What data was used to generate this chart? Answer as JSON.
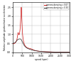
{
  "title": "",
  "xlabel": "speed (rpm)",
  "ylabel": "Relative amplitude gearbox/motor acceleration",
  "xlim": [
    0,
    3000
  ],
  "ylim": [
    0,
    2.8
  ],
  "xticks": [
    0,
    500,
    1000,
    1500,
    2000,
    2500,
    3000
  ],
  "yticks": [
    0.0,
    0.5,
    1.0,
    1.5,
    2.0,
    2.5
  ],
  "legend_labels": [
    "gamma damping = 0.07",
    "gamma damping = 0.30"
  ],
  "line_colors": [
    "#cc1111",
    "#222222"
  ],
  "background_color": "#ffffff",
  "grid_color": "#bbbbbb"
}
